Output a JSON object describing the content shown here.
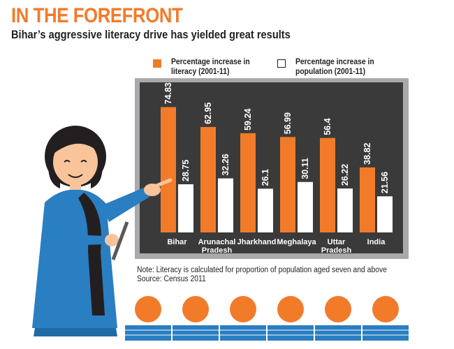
{
  "header": {
    "title": "IN THE FOREFRONT",
    "subtitle": "Bihar’s aggressive literacy drive has yielded great results"
  },
  "legend": [
    {
      "label": "Percentage increase in literacy (2001-11)",
      "color": "#f27b2a"
    },
    {
      "label": "Percentage increase in population (2001-11)",
      "color": "#ffffff"
    }
  ],
  "notes": {
    "line1": "Note: Literacy is calculated for proportion of population aged seven and above",
    "line2": "Source: Census 2011"
  },
  "colors": {
    "accent": "#f27b2a",
    "board": "#3a3a3a",
    "board_frame": "#a7a9ac",
    "teacher_dress": "#2a7ec2",
    "audience_base": "#2a7ec2"
  },
  "chart_data": {
    "type": "bar",
    "categories": [
      "Bihar",
      "Arunachal Pradesh",
      "Jharkhand",
      "Meghalaya",
      "Uttar Pradesh",
      "India"
    ],
    "category_lines": [
      [
        "Bihar"
      ],
      [
        "Arunachal",
        "Pradesh"
      ],
      [
        "Jharkhand"
      ],
      [
        "Meghalaya"
      ],
      [
        "Uttar",
        "Pradesh"
      ],
      [
        "India"
      ]
    ],
    "series": [
      {
        "name": "Percentage increase in literacy (2001-11)",
        "values": [
          74.83,
          62.95,
          59.24,
          56.99,
          56.4,
          38.82
        ],
        "labels": [
          "74.83",
          "62.95",
          "59.24",
          "56.99",
          "56.4",
          "38.82"
        ],
        "color": "#f27b2a"
      },
      {
        "name": "Percentage increase in population (2001-11)",
        "values": [
          28.75,
          32.26,
          26.1,
          30.11,
          26.22,
          21.56
        ],
        "labels": [
          "28.75",
          "32.26",
          "26.1",
          "30.11",
          "26.22",
          "21.56"
        ],
        "color": "#ffffff"
      }
    ],
    "ylim": [
      0,
      80
    ],
    "legend_position": "top",
    "grid": false
  }
}
